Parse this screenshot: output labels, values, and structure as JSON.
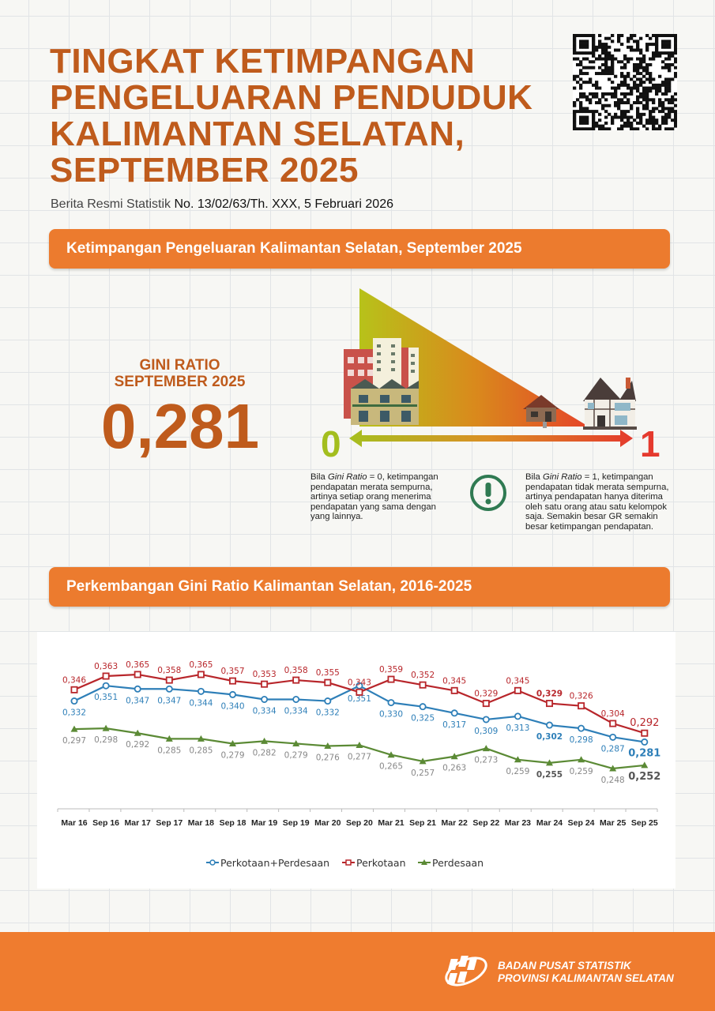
{
  "header": {
    "title_lines": [
      "TINGKAT KETIMPANGAN",
      "PENGELUARAN PENDUDUK",
      "KALIMANTAN SELATAN,",
      "SEPTEMBER 2025"
    ],
    "subtitle_prefix": "Berita Resmi Statistik",
    "subtitle_number": "No. 13/02/63/Th. XXX, 5 Februari 2026",
    "qr_icon": "qr-code-icon"
  },
  "section1": {
    "banner": "Ketimpangan Pengeluaran Kalimantan Selatan, September 2025",
    "gini_label_line1": "GINI RATIO",
    "gini_label_line2": "SEPTEMBER 2025",
    "gini_value": "0,281",
    "scale_min": "0",
    "scale_max": "1",
    "note_left": {
      "pre": "Bila ",
      "em": "Gini Ratio",
      "post": " = 0, ketimpangan pendapatan merata sempurna, artinya setiap orang menerima pendapatan yang sama dengan yang lainnya."
    },
    "note_right": {
      "pre": "Bila ",
      "em": "Gini Ratio",
      "post": " = 1, ketimpangan pendapatan tidak merata sempurna, artinya pendapatan hanya diterima oleh satu orang atau satu kelompok saja. Semakin besar GR semakin besar ketimpangan pendapatan."
    },
    "colors": {
      "green": "#a3be1e",
      "red": "#e53a2e",
      "orange": "#ec7b2e",
      "icon": "#2f7a52"
    }
  },
  "section2": {
    "banner": "Perkembangan Gini Ratio Kalimantan Selatan, 2016-2025"
  },
  "chart_data": {
    "type": "line",
    "title": "Perkembangan Gini Ratio Kalimantan Selatan, 2016-2025",
    "xlabel": "",
    "ylabel": "",
    "categories": [
      "Mar 16",
      "Sep 16",
      "Mar 17",
      "Sep 17",
      "Mar 18",
      "Sep 18",
      "Mar 19",
      "Sep 19",
      "Mar 20",
      "Sep 20",
      "Mar 21",
      "Sep 21",
      "Mar 22",
      "Sep 22",
      "Mar 23",
      "Mar 24",
      "Sep 24",
      "Mar 25",
      "Sep 25"
    ],
    "series": [
      {
        "name": "Perkotaan+Perdesaan",
        "color": "#2e7fb8",
        "marker": "circle",
        "values": [
          0.332,
          0.351,
          0.347,
          0.347,
          0.344,
          0.34,
          0.334,
          0.334,
          0.332,
          0.351,
          0.33,
          0.325,
          0.317,
          0.309,
          0.313,
          0.302,
          0.298,
          0.287,
          0.281
        ],
        "labels": [
          "0,332",
          "0,351",
          "0,347",
          "0,347",
          "0,344",
          "0,340",
          "0,334",
          "0,334",
          "0,332",
          "0,351",
          "0,330",
          "0,325",
          "0,317",
          "0,309",
          "0,313",
          "0,302",
          "0,298",
          "0,287",
          "0,281"
        ]
      },
      {
        "name": "Perkotaan",
        "color": "#b8262b",
        "marker": "square",
        "values": [
          0.346,
          0.363,
          0.365,
          0.358,
          0.365,
          0.357,
          0.353,
          0.358,
          0.355,
          0.343,
          0.359,
          0.352,
          0.345,
          0.329,
          0.345,
          0.329,
          0.326,
          0.304,
          0.292
        ],
        "labels": [
          "0,346",
          "0,363",
          "0,365",
          "0,358",
          "0,365",
          "0,357",
          "0,353",
          "0,358",
          "0,355",
          "0,343",
          "0,359",
          "0,352",
          "0,345",
          "0,329",
          "0,345",
          "0,329",
          "0,326",
          "0,304",
          "0,292"
        ]
      },
      {
        "name": "Perdesaan",
        "color": "#5b8a35",
        "marker": "triangle",
        "values": [
          0.297,
          0.298,
          0.292,
          0.285,
          0.285,
          0.279,
          0.282,
          0.279,
          0.276,
          0.277,
          0.265,
          0.257,
          0.263,
          0.273,
          0.259,
          0.255,
          0.259,
          0.248,
          0.252
        ],
        "labels": [
          "0,297",
          "0,298",
          "0,292",
          "0,285",
          "0,285",
          "0,279",
          "0,282",
          "0,279",
          "0,276",
          "0,277",
          "0,265",
          "0,257",
          "0,263",
          "0,273",
          "0,259",
          "0,255",
          "0,259",
          "0,248",
          "0,252"
        ]
      }
    ],
    "ylim": [
      0.22,
      0.38
    ],
    "grid": false,
    "legend_position": "bottom"
  },
  "footer": {
    "org_line1": "BADAN PUSAT STATISTIK",
    "org_line2": "PROVINSI KALIMANTAN SELATAN",
    "logo_icon": "bps-logo-icon"
  }
}
